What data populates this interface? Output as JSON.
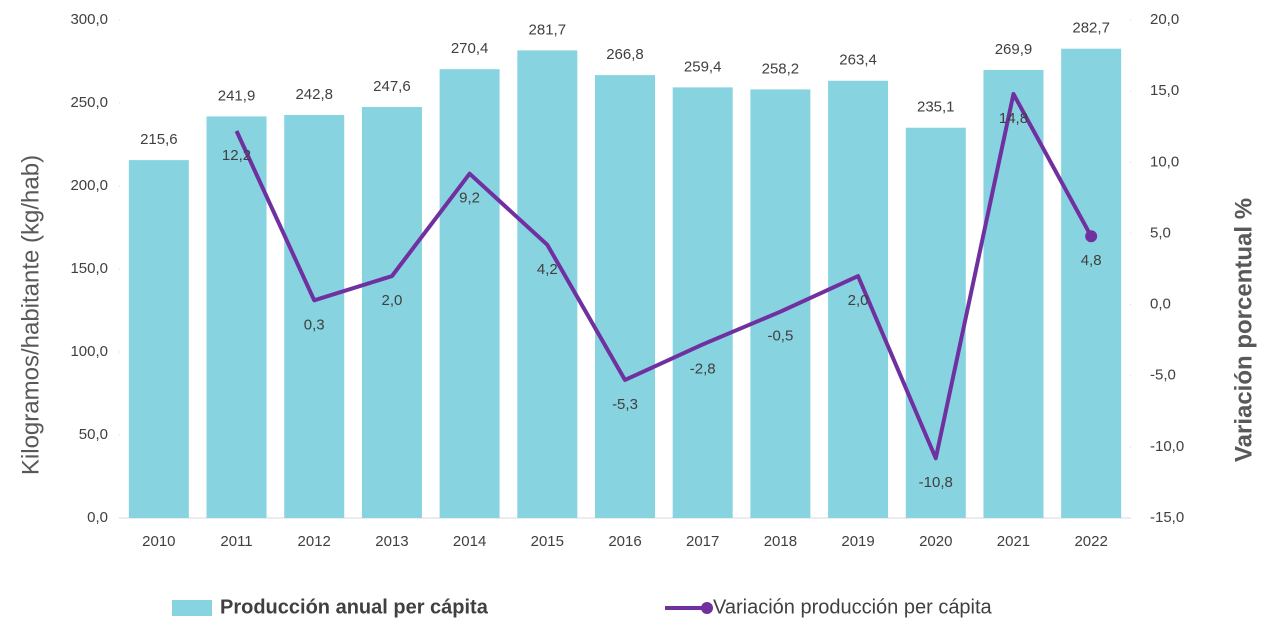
{
  "chart_data": {
    "type": "bar",
    "categories": [
      "2010",
      "2011",
      "2012",
      "2013",
      "2014",
      "2015",
      "2016",
      "2017",
      "2018",
      "2019",
      "2020",
      "2021",
      "2022"
    ],
    "y_label": "Kilogramos/habitante  (kg/hab)",
    "y2_label": "Variación porcentual %",
    "ylim": [
      0,
      300
    ],
    "yticks": [
      {
        "value": 0,
        "label": "0,0"
      },
      {
        "value": 50,
        "label": "50,0"
      },
      {
        "value": 100,
        "label": "100,0"
      },
      {
        "value": 150,
        "label": "150,0"
      },
      {
        "value": 200,
        "label": "200,0"
      },
      {
        "value": 250,
        "label": "250,0"
      },
      {
        "value": 300,
        "label": "300,0"
      }
    ],
    "y2lim": [
      -15,
      20
    ],
    "y2ticks": [
      {
        "value": -15,
        "label": "-15,0"
      },
      {
        "value": -10,
        "label": "-10,0"
      },
      {
        "value": -5,
        "label": "-5,0"
      },
      {
        "value": 0,
        "label": "0,0"
      },
      {
        "value": 5,
        "label": "5,0"
      },
      {
        "value": 10,
        "label": "10,0"
      },
      {
        "value": 15,
        "label": "15,0"
      },
      {
        "value": 20,
        "label": "20,0"
      }
    ],
    "legend": "bottom",
    "series": [
      {
        "name": "Producción anual per cápita",
        "type": "bar",
        "color": "#87d3e0",
        "values": [
          215.6,
          241.9,
          242.8,
          247.6,
          270.4,
          281.7,
          266.8,
          259.4,
          258.2,
          263.4,
          235.1,
          269.9,
          282.7
        ],
        "value_labels": [
          "215,6",
          "241,9",
          "242,8",
          "247,6",
          "270,4",
          "281,7",
          "266,8",
          "259,4",
          "258,2",
          "263,4",
          "235,1",
          "269,9",
          "282,7"
        ]
      },
      {
        "name": "Variación producción per cápita",
        "type": "line",
        "axis": "y2",
        "color": "#7030a0",
        "values": [
          null,
          12.2,
          0.3,
          2.0,
          9.2,
          4.2,
          -5.3,
          -2.8,
          -0.5,
          2.0,
          -10.8,
          14.8,
          4.8
        ],
        "value_labels": [
          null,
          "12,2",
          "0,3",
          "2,0",
          "9,2",
          "4,2",
          "-5,3",
          "-2,8",
          "-0,5",
          "2,0",
          "-10,8",
          "14,8",
          "4,8"
        ]
      }
    ]
  }
}
